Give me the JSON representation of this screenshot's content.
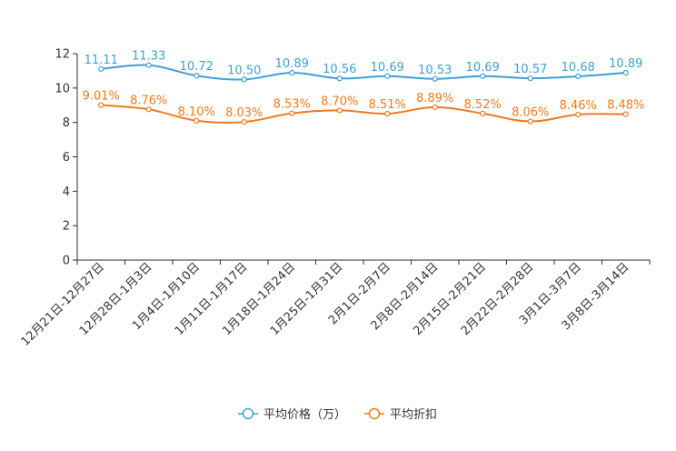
{
  "chart_data": {
    "type": "line",
    "title": "",
    "xlabel": "",
    "ylabel": "",
    "ylim": [
      0,
      12
    ],
    "yticks": [
      0,
      2,
      4,
      6,
      8,
      10,
      12
    ],
    "grid": false,
    "legend_position": "bottom-center",
    "categories": [
      "12月21日-12月27日",
      "12月28日-1月3日",
      "1月4日-1月10日",
      "1月11日-1月17日",
      "1月18日-1月24日",
      "1月25日-1月31日",
      "2月1日-2月7日",
      "2月8日-2月14日",
      "2月15日-2月21日",
      "2月22日-2月28日",
      "3月1日-3月7日",
      "3月8日-3月14日"
    ],
    "series": [
      {
        "name": "平均价格（万）",
        "color": "#3fa0d4",
        "values": [
          11.11,
          11.33,
          10.72,
          10.5,
          10.89,
          10.56,
          10.69,
          10.53,
          10.69,
          10.57,
          10.68,
          10.89
        ],
        "labels": [
          "11.11",
          "11.33",
          "10.72",
          "10.50",
          "10.89",
          "10.56",
          "10.69",
          "10.53",
          "10.69",
          "10.57",
          "10.68",
          "10.89"
        ]
      },
      {
        "name": "平均折扣",
        "color": "#f07a1c",
        "values": [
          9.01,
          8.76,
          8.1,
          8.03,
          8.53,
          8.7,
          8.51,
          8.89,
          8.52,
          8.06,
          8.46,
          8.48
        ],
        "labels": [
          "9.01%",
          "8.76%",
          "8.10%",
          "8.03%",
          "8.53%",
          "8.70%",
          "8.51%",
          "8.89%",
          "8.52%",
          "8.06%",
          "8.46%",
          "8.48%"
        ]
      }
    ]
  }
}
